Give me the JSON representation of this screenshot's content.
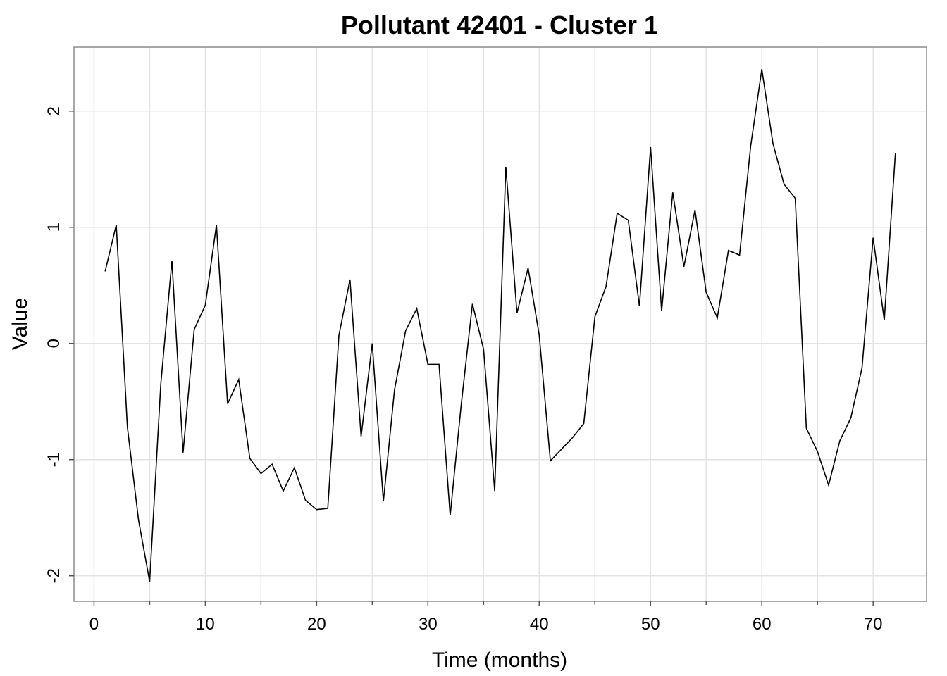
{
  "chart_data": {
    "type": "line",
    "title": "Pollutant 42401 - Cluster 1",
    "xlabel": "Time (months)",
    "ylabel": "Value",
    "xlim": [
      -1.8,
      74.8
    ],
    "ylim": [
      -2.22,
      2.55
    ],
    "x_ticks": [
      0,
      10,
      20,
      30,
      40,
      50,
      60,
      70
    ],
    "x_minor_ticks": [
      5,
      15,
      25,
      35,
      45,
      55,
      65
    ],
    "y_ticks": [
      -2,
      -1,
      0,
      1,
      2
    ],
    "grid": true,
    "line_color": "#000000",
    "series": [
      {
        "x": [
          1,
          2,
          3,
          4,
          5,
          6,
          7,
          8,
          9,
          10,
          11,
          12,
          13,
          14,
          15,
          16,
          17,
          18,
          19,
          20,
          21,
          22,
          23,
          24,
          25,
          26,
          27,
          28,
          29,
          30,
          31,
          32,
          33,
          34,
          35,
          36,
          37,
          38,
          39,
          40,
          41,
          42,
          43,
          44,
          45,
          46,
          47,
          48,
          49,
          50,
          51,
          52,
          53,
          54,
          55,
          56,
          57,
          58,
          59,
          60,
          61,
          62,
          63,
          64,
          65,
          66,
          67,
          68,
          69,
          70,
          71,
          72
        ],
        "values": [
          0.62,
          1.02,
          -0.72,
          -1.52,
          -2.05,
          -0.35,
          0.71,
          -0.94,
          0.12,
          0.33,
          1.02,
          -0.52,
          -0.31,
          -0.99,
          -1.12,
          -1.04,
          -1.27,
          -1.07,
          -1.35,
          -1.43,
          -1.42,
          0.07,
          0.55,
          -0.8,
          0.0,
          -1.36,
          -0.4,
          0.11,
          0.3,
          -0.18,
          -0.18,
          -1.48,
          -0.52,
          0.34,
          -0.05,
          -1.27,
          1.52,
          0.26,
          0.65,
          0.07,
          -1.01,
          -0.91,
          -0.81,
          -0.69,
          0.23,
          0.49,
          1.12,
          1.06,
          0.32,
          1.69,
          0.28,
          1.3,
          0.66,
          1.15,
          0.44,
          0.22,
          0.8,
          0.76,
          1.7,
          2.36,
          1.72,
          1.37,
          1.25,
          -0.73,
          -0.93,
          -1.22,
          -0.84,
          -0.64,
          -0.21,
          0.91,
          0.2,
          1.64
        ]
      }
    ]
  }
}
